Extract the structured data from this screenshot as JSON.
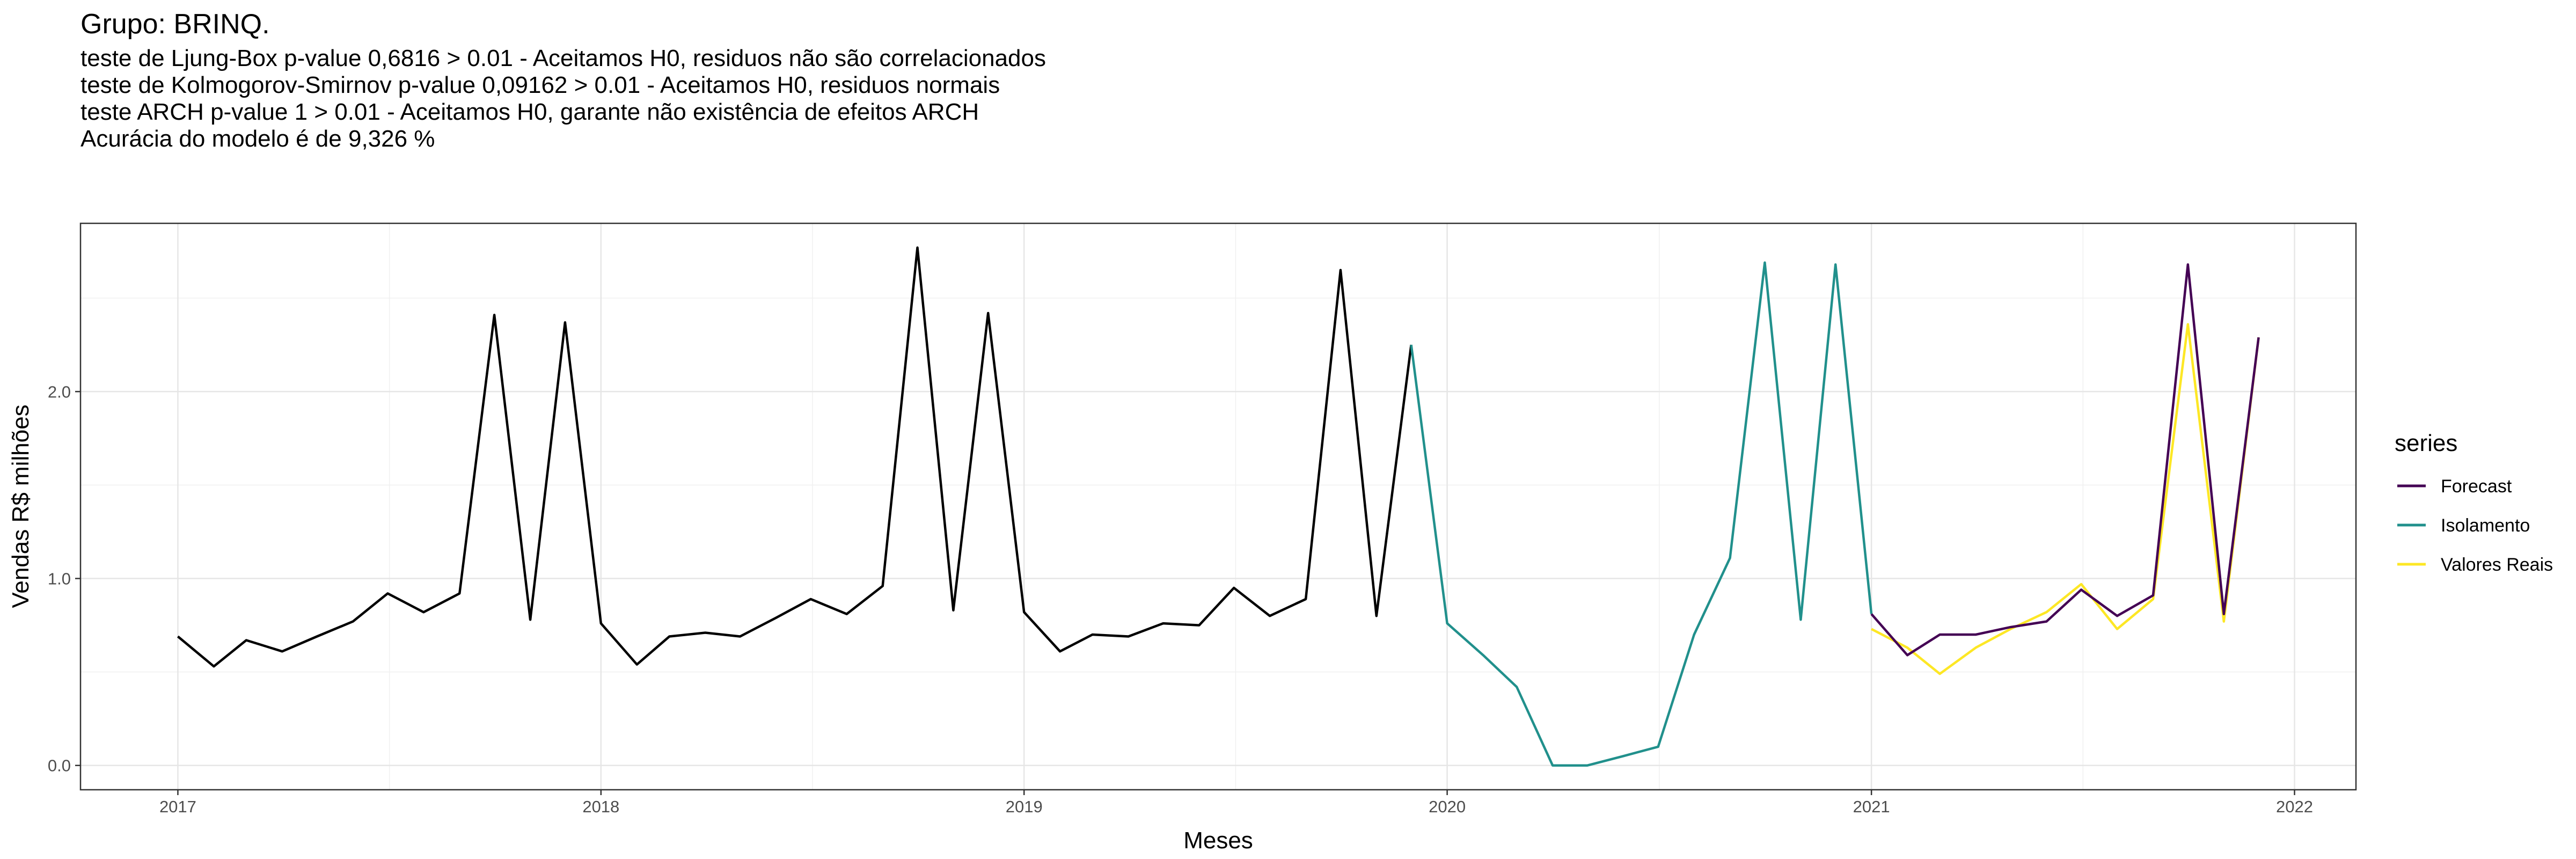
{
  "chart_data": {
    "type": "line",
    "title": "Grupo: BRINQ.",
    "subtitle_lines": [
      "teste de Ljung-Box p-value 0,6816 > 0.01 - Aceitamos H0, residuos não são correlacionados",
      "teste de Kolmogorov-Smirnov p-value 0,09162 > 0.01 - Aceitamos H0, residuos normais",
      "teste ARCH p-value 1 > 0.01 - Aceitamos H0, garante não existência de efeitos ARCH",
      "Acurácia do modelo é de 9,326 %"
    ],
    "xlabel": "Meses",
    "ylabel": "Vendas R$ milhões",
    "xlim": [
      "2016-10-09",
      "2022-02-23"
    ],
    "ylim": [
      -0.13,
      2.9
    ],
    "x_ticks": [
      "2017-01-01",
      "2018-01-01",
      "2019-01-01",
      "2020-01-01",
      "2021-01-01",
      "2022-01-01"
    ],
    "x_tick_labels": [
      "2017",
      "2018",
      "2019",
      "2020",
      "2021",
      "2022"
    ],
    "y_ticks": [
      0.0,
      1.0,
      2.0
    ],
    "y_tick_labels": [
      "0.0",
      "1.0",
      "2.0"
    ],
    "grid": true,
    "legend": {
      "title": "series",
      "position": "right"
    },
    "base_series": {
      "color": "#000000",
      "x": [
        "2017-01-01",
        "2017-02-01",
        "2017-03-01",
        "2017-04-01",
        "2017-05-01",
        "2017-06-01",
        "2017-07-01",
        "2017-08-01",
        "2017-09-01",
        "2017-10-01",
        "2017-11-01",
        "2017-12-01",
        "2018-01-01",
        "2018-02-01",
        "2018-03-01",
        "2018-04-01",
        "2018-05-01",
        "2018-06-01",
        "2018-07-01",
        "2018-08-01",
        "2018-09-01",
        "2018-10-01",
        "2018-11-01",
        "2018-12-01",
        "2019-01-01",
        "2019-02-01",
        "2019-03-01",
        "2019-04-01",
        "2019-05-01",
        "2019-06-01",
        "2019-07-01",
        "2019-08-01",
        "2019-09-01",
        "2019-10-01",
        "2019-11-01",
        "2019-12-01"
      ],
      "values": [
        0.69,
        0.53,
        0.67,
        0.61,
        0.69,
        0.77,
        0.92,
        0.82,
        0.92,
        2.41,
        0.78,
        2.37,
        0.76,
        0.54,
        0.69,
        0.71,
        0.69,
        0.79,
        0.89,
        0.81,
        0.96,
        2.77,
        0.83,
        2.42,
        0.82,
        0.61,
        0.7,
        0.69,
        0.76,
        0.75,
        0.95,
        0.8,
        0.89,
        2.65,
        0.8,
        2.25
      ]
    },
    "series": [
      {
        "name": "Forecast",
        "color": "#440154",
        "x": [
          "2021-01-01",
          "2021-02-01",
          "2021-03-01",
          "2021-04-01",
          "2021-05-01",
          "2021-06-01",
          "2021-07-01",
          "2021-08-01",
          "2021-09-01",
          "2021-10-01",
          "2021-11-01",
          "2021-12-01"
        ],
        "values": [
          0.81,
          0.59,
          0.7,
          0.7,
          0.74,
          0.77,
          0.94,
          0.8,
          0.91,
          2.68,
          0.81,
          2.29
        ]
      },
      {
        "name": "Isolamento",
        "color": "#21908C",
        "x": [
          "2019-12-01",
          "2020-01-01",
          "2020-02-01",
          "2020-03-01",
          "2020-04-01",
          "2020-05-01",
          "2020-06-01",
          "2020-07-01",
          "2020-08-01",
          "2020-09-01",
          "2020-10-01",
          "2020-11-01",
          "2020-12-01",
          "2021-01-01"
        ],
        "values": [
          2.25,
          0.76,
          0.59,
          0.42,
          0.0,
          0.0,
          0.05,
          0.1,
          0.7,
          1.11,
          2.69,
          0.78,
          2.68,
          0.81
        ]
      },
      {
        "name": "Valores Reais",
        "color": "#FDE725",
        "x": [
          "2021-01-01",
          "2021-02-01",
          "2021-03-01",
          "2021-04-01",
          "2021-05-01",
          "2021-06-01",
          "2021-07-01",
          "2021-08-01",
          "2021-09-01",
          "2021-10-01",
          "2021-11-01",
          "2021-12-01"
        ],
        "values": [
          0.73,
          0.63,
          0.49,
          0.63,
          0.73,
          0.82,
          0.97,
          0.73,
          0.89,
          2.36,
          0.77,
          2.29
        ]
      }
    ]
  }
}
